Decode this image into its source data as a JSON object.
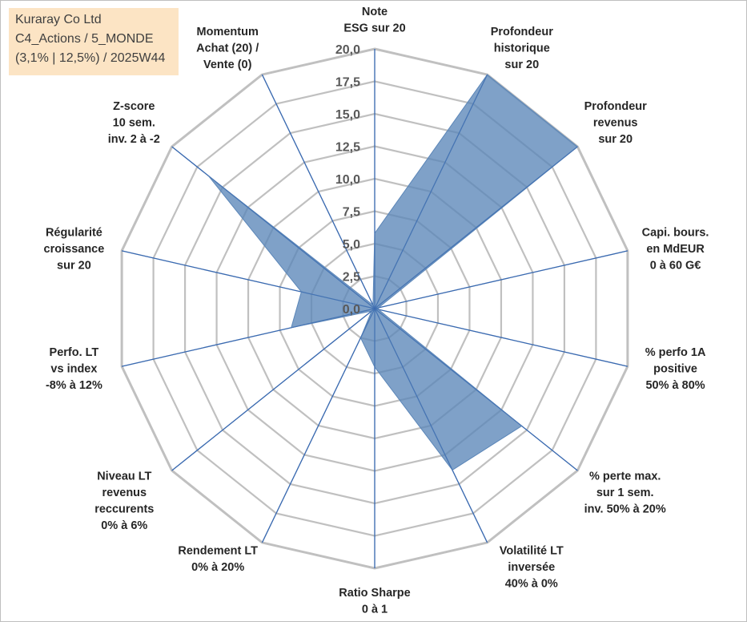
{
  "title_box": {
    "line1": "Kuraray Co Ltd",
    "line2": "C4_Actions / 5_MONDE",
    "line3": "(3,1% | 12,5%) / 2025W44"
  },
  "colors": {
    "fill": "#5b86b8",
    "spoke": "#3a6ab0",
    "grid": "#c0c0c0"
  },
  "chart_data": {
    "type": "radar",
    "rmin": 0,
    "rmax": 20,
    "ticks": [
      "0,0",
      "2,5",
      "5,0",
      "7,5",
      "10,0",
      "12,5",
      "15,0",
      "17,5",
      "20,0"
    ],
    "tick_values": [
      0,
      2.5,
      5,
      7.5,
      10,
      12.5,
      15,
      17.5,
      20
    ],
    "axes": [
      {
        "label": [
          "Note",
          "ESG sur 20"
        ],
        "value": 5.8
      },
      {
        "label": [
          "Profondeur",
          "historique",
          "sur 20"
        ],
        "value": 20
      },
      {
        "label": [
          "Profondeur",
          "revenus",
          "sur 20"
        ],
        "value": 20
      },
      {
        "label": [
          "Capi. bours.",
          "en MdEUR",
          "0 à 60 G€"
        ],
        "value": 0.3
      },
      {
        "label": [
          "% perfo 1A",
          "positive",
          "50% à 80%"
        ],
        "value": 0.3
      },
      {
        "label": [
          "% perte max.",
          "sur 1 sem.",
          "inv. 50% à 20%"
        ],
        "value": 14.5
      },
      {
        "label": [
          "Volatilité LT",
          "inversée",
          "40% à 0%"
        ],
        "value": 13.8
      },
      {
        "label": [
          "Ratio Sharpe",
          "0 à 1"
        ],
        "value": 4.5
      },
      {
        "label": [
          "Rendement LT",
          "0% à 20%"
        ],
        "value": 2.5
      },
      {
        "label": [
          "Niveau LT",
          "revenus",
          "reccurents",
          "0% à 6%"
        ],
        "value": 0.3
      },
      {
        "label": [
          "Perfo. LT",
          "vs index",
          "-8% à 12%"
        ],
        "value": 6.6
      },
      {
        "label": [
          "Régularité",
          "croissance",
          "sur 20"
        ],
        "value": 5.8
      },
      {
        "label": [
          "Z-score",
          "10 sem.",
          "inv. 2 à -2"
        ],
        "value": 16.4
      },
      {
        "label": [
          "Momentum",
          "Achat (20) /",
          "Vente (0)"
        ],
        "value": 0.3
      }
    ]
  }
}
